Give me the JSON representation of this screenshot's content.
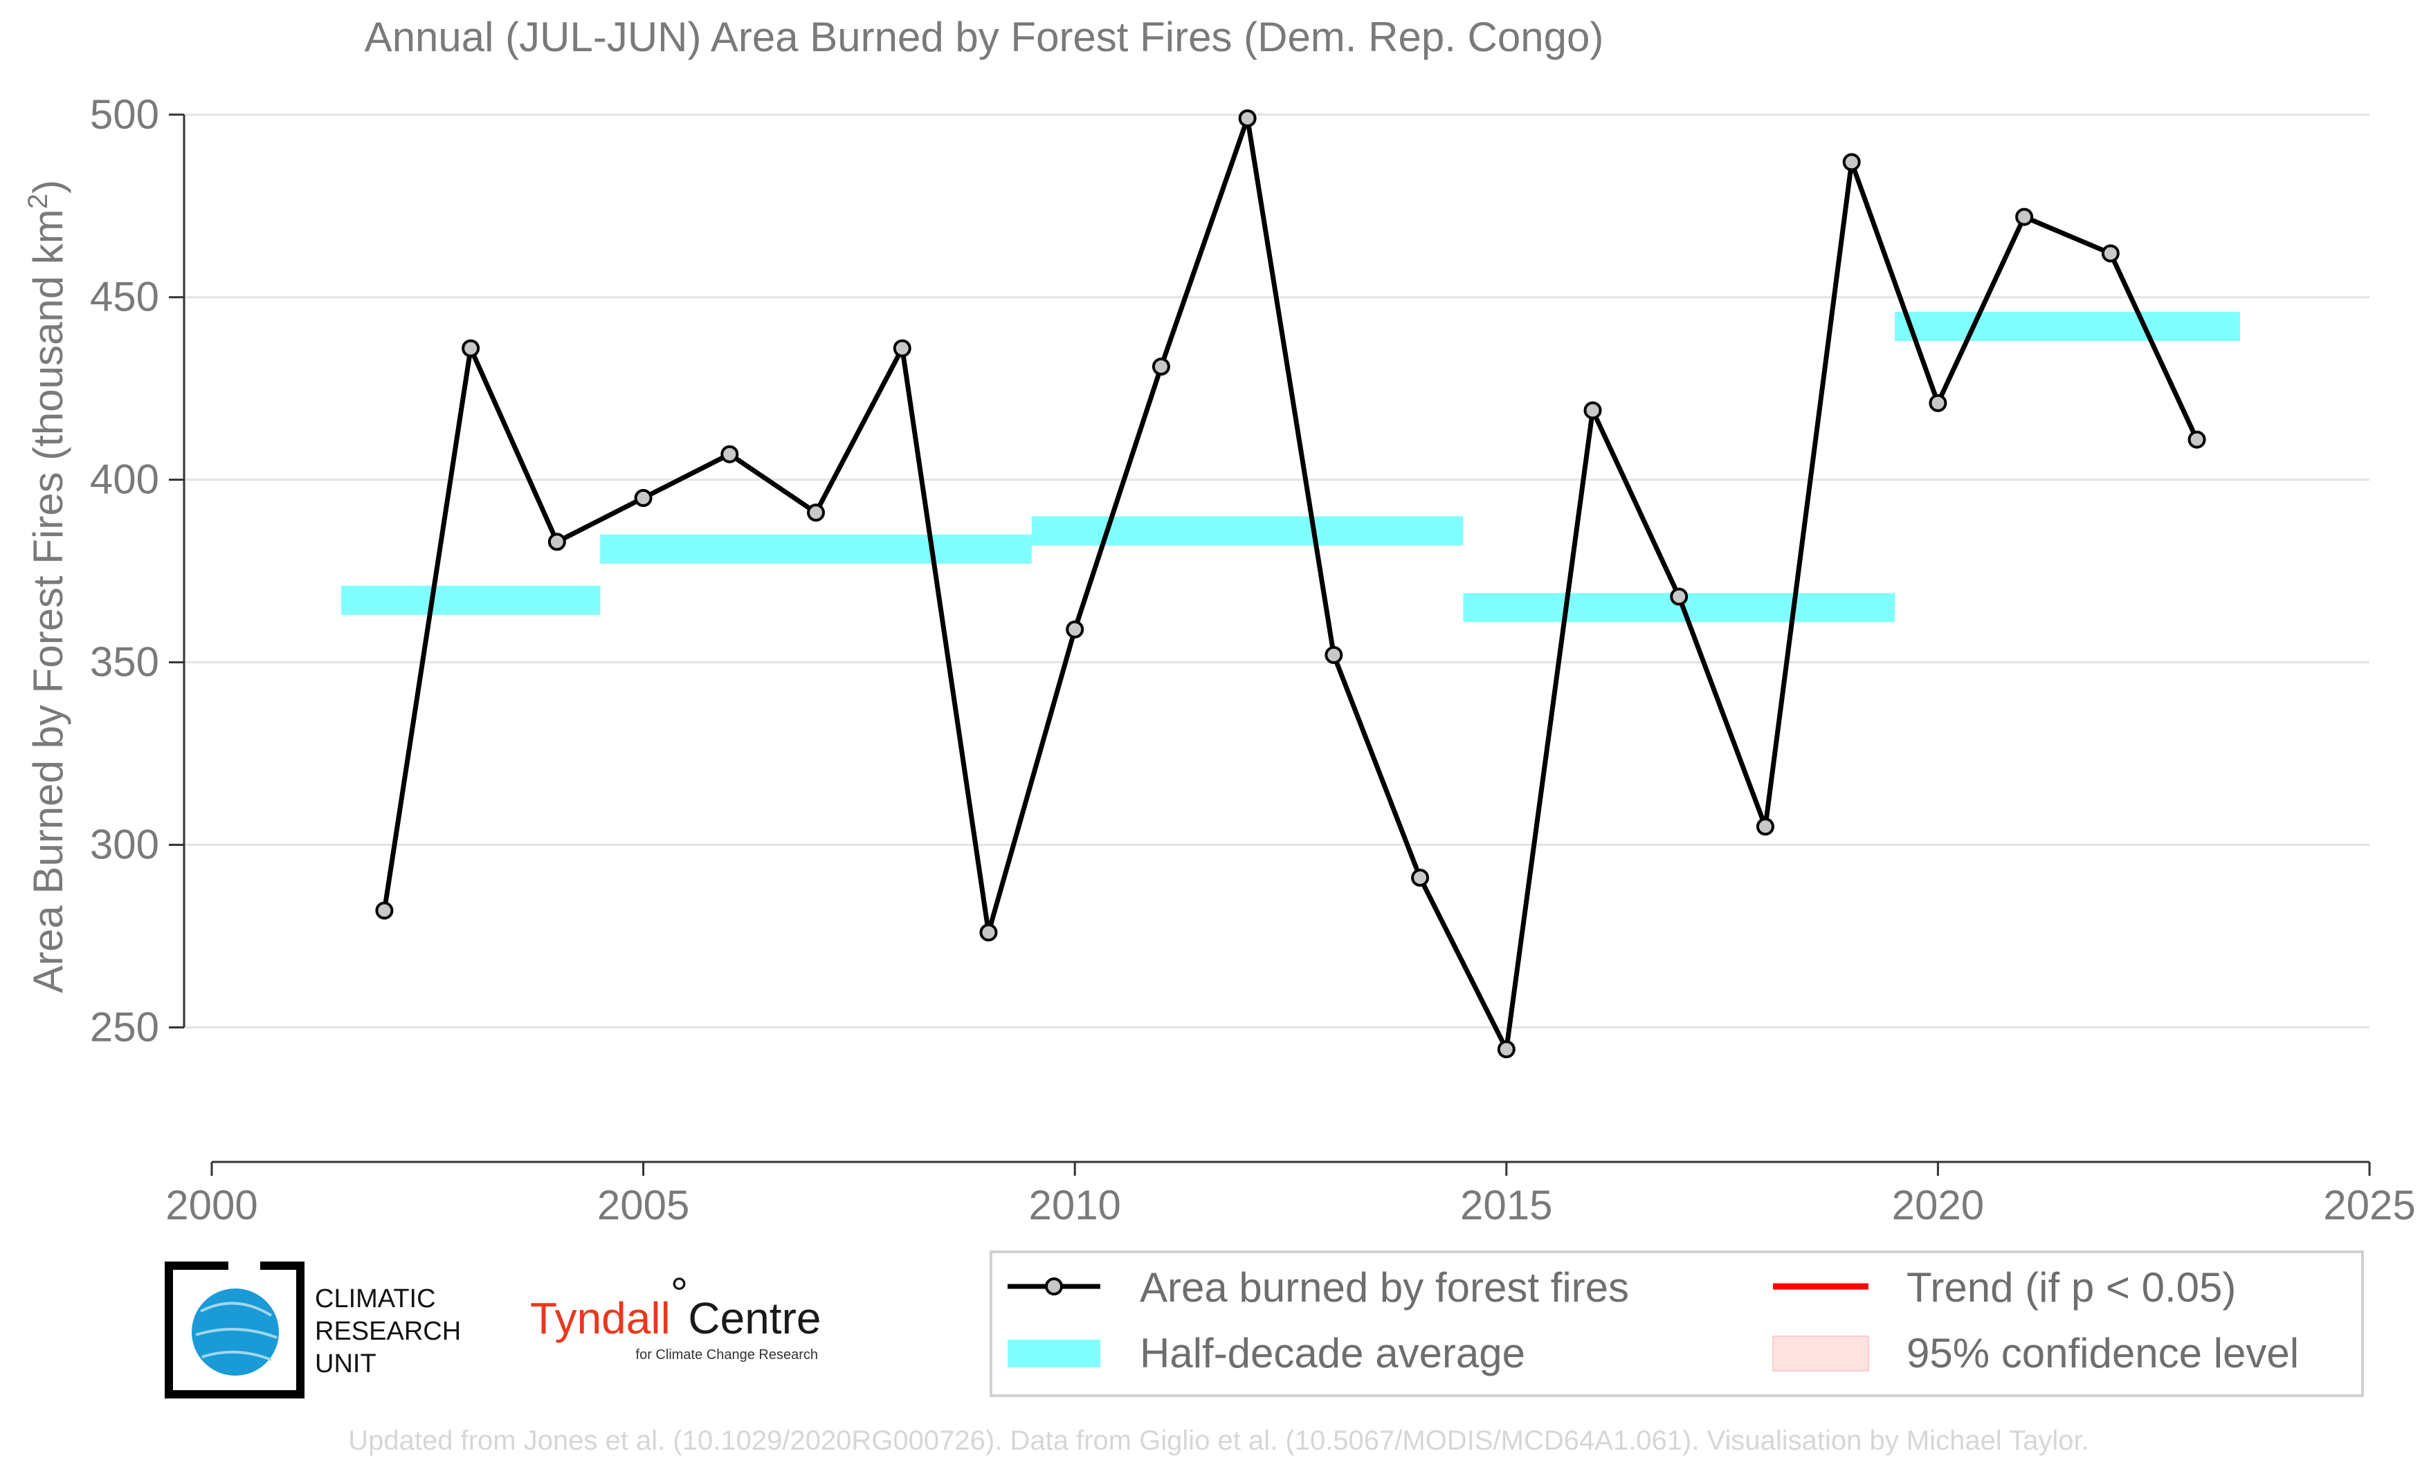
{
  "chart_data": {
    "type": "line",
    "title": "Annual (JUL-JUN) Area Burned by Forest Fires (Dem. Rep. Congo)",
    "xlabel": "",
    "ylabel": "Area Burned by Forest Fires (thousand km",
    "ylabel_superscript": "2",
    "ylabel_close": ")",
    "xlim": [
      2000,
      2025
    ],
    "ylim": [
      223,
      510
    ],
    "x_ticks": [
      2000,
      2005,
      2010,
      2015,
      2020,
      2025
    ],
    "y_ticks": [
      250,
      300,
      350,
      400,
      450,
      500
    ],
    "grid": "horizontal",
    "legend_position": "bottom-right",
    "series": [
      {
        "name": "Area burned by forest fires",
        "color": "#000000",
        "marker_fill": "#c8c8c8",
        "x": [
          2002,
          2003,
          2004,
          2005,
          2006,
          2007,
          2008,
          2009,
          2010,
          2011,
          2012,
          2013,
          2014,
          2015,
          2016,
          2017,
          2018,
          2019,
          2020,
          2021,
          2022,
          2023
        ],
        "values": [
          282,
          436,
          383,
          395,
          407,
          391,
          436,
          276,
          359,
          431,
          499,
          352,
          291,
          244,
          419,
          368,
          305,
          487,
          421,
          472,
          462,
          411
        ]
      }
    ],
    "half_decade_averages": {
      "name": "Half-decade average",
      "color": "#7fffff",
      "segments": [
        {
          "x_start": 2001.5,
          "x_end": 2004.5,
          "value": 367
        },
        {
          "x_start": 2004.5,
          "x_end": 2009.5,
          "value": 381
        },
        {
          "x_start": 2009.5,
          "x_end": 2014.5,
          "value": 386
        },
        {
          "x_start": 2014.5,
          "x_end": 2019.5,
          "value": 365
        },
        {
          "x_start": 2019.5,
          "x_end": 2023.5,
          "value": 442
        }
      ]
    },
    "legend": [
      {
        "key": "line",
        "label": "Area burned by forest fires",
        "color": "#000000"
      },
      {
        "key": "avg",
        "label": "Half-decade average",
        "color": "#7fffff"
      },
      {
        "key": "trend",
        "label": "Trend (if p < 0.05)",
        "color": "#ff0000"
      },
      {
        "key": "ci",
        "label": "95% confidence level",
        "color": "#ffe2e2"
      }
    ]
  },
  "logos": {
    "cru": {
      "line1": "CLIMATIC",
      "line2": "RESEARCH",
      "line3": "UNIT",
      "globe_color": "#1a9ad6"
    },
    "tyndall": {
      "main": "Tyndall",
      "degree": "°",
      "centre": "Centre",
      "sub": "for Climate Change Research"
    }
  },
  "credit": "Updated from Jones et al. (10.1029/2020RG000726). Data from Giglio et al. (10.5067/MODIS/MCD64A1.061). Visualisation by Michael Taylor."
}
